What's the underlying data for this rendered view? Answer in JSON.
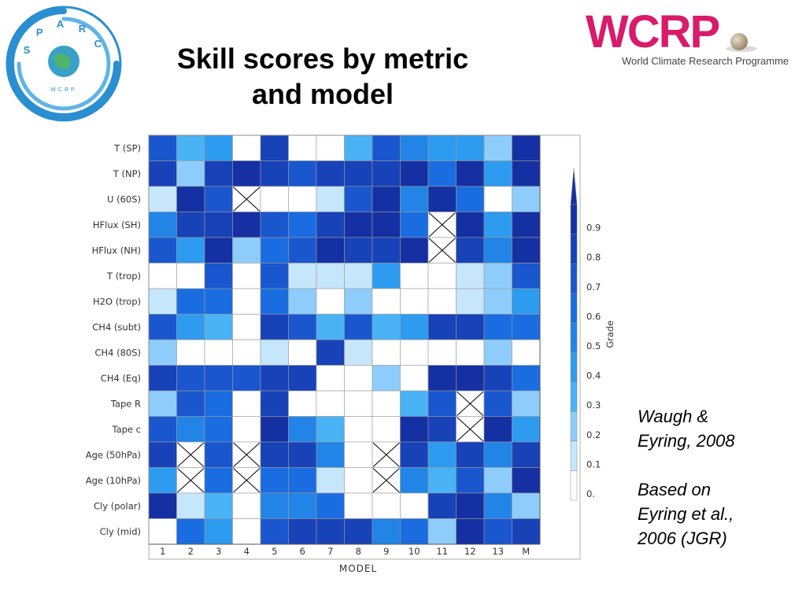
{
  "title": "Skill scores by metric\nand model",
  "logos": {
    "sparc_letters": [
      "S",
      "P",
      "A",
      "R",
      "C"
    ],
    "sparc_inner": "WCRP",
    "wcrp_word": "WCRP",
    "wcrp_subtitle": "World Climate Research Programme"
  },
  "caption": {
    "line1": "Waugh &\nEyring, 2008",
    "line2": "Based on\nEyring et al.,\n2006 (JGR)"
  },
  "colors": {
    "missing_marker": "#000000",
    "colorbar_levels": [
      "#ffffff",
      "#c6e6fb",
      "#8ecdfb",
      "#49b3f6",
      "#2d9bf0",
      "#2184e6",
      "#1a6de0",
      "#1a57cf",
      "#1742b8",
      "#1530a2"
    ]
  },
  "chart_data": {
    "type": "heatmap",
    "xlabel": "MODEL",
    "x_categories": [
      "1",
      "2",
      "3",
      "4",
      "5",
      "6",
      "7",
      "8",
      "9",
      "10",
      "11",
      "12",
      "13",
      "M"
    ],
    "y_categories": [
      "T (SP)",
      "T (NP)",
      "U (60S)",
      "HFlux (SH)",
      "HFlux (NH)",
      "T (trop)",
      "H2O (trop)",
      "CH4 (subt)",
      "CH4 (80S)",
      "CH4 (Eq)",
      "Tape R",
      "Tape c",
      "Age (50hPa)",
      "Age (10hPa)",
      "Cly (polar)",
      "Cly (mid)"
    ],
    "colorbar_label": "Grade",
    "colorbar_ticks": [
      "0.",
      "0.1",
      "0.2",
      "0.3",
      "0.4",
      "0.5",
      "0.6",
      "0.7",
      "0.8",
      "0.9"
    ],
    "value_range": [
      0,
      1
    ],
    "missing_value": null,
    "values": [
      [
        0.75,
        0.3,
        0.45,
        0.0,
        0.85,
        0.0,
        0.0,
        0.35,
        0.75,
        0.55,
        0.45,
        0.45,
        0.25,
        0.95
      ],
      [
        0.85,
        0.25,
        0.85,
        0.95,
        0.85,
        0.75,
        0.85,
        0.85,
        0.85,
        0.9,
        0.65,
        0.9,
        0.45,
        0.95
      ],
      [
        0.15,
        0.95,
        0.75,
        null,
        0.0,
        0.0,
        0.15,
        0.75,
        0.9,
        0.55,
        0.9,
        0.65,
        0.0,
        0.25
      ],
      [
        0.55,
        0.85,
        0.85,
        0.95,
        0.75,
        0.65,
        0.85,
        0.9,
        0.9,
        0.65,
        null,
        0.9,
        0.45,
        0.9
      ],
      [
        0.75,
        0.45,
        0.95,
        0.25,
        0.65,
        0.75,
        0.9,
        0.85,
        0.85,
        0.9,
        null,
        0.85,
        0.55,
        0.9
      ],
      [
        0.0,
        0.0,
        0.75,
        0.0,
        0.75,
        0.15,
        0.15,
        0.15,
        0.45,
        0.0,
        0.0,
        0.15,
        0.25,
        0.75
      ],
      [
        0.15,
        0.65,
        0.65,
        0.0,
        0.65,
        0.25,
        0.0,
        0.25,
        0.0,
        0.0,
        0.0,
        0.15,
        0.25,
        0.45
      ],
      [
        0.75,
        0.45,
        0.35,
        0.0,
        0.85,
        0.75,
        0.35,
        0.75,
        0.35,
        0.45,
        0.85,
        0.85,
        0.65,
        0.65
      ],
      [
        0.25,
        0.0,
        0.0,
        0.0,
        0.15,
        0.0,
        0.85,
        0.15,
        0.0,
        0.0,
        0.0,
        0.0,
        0.25,
        0.0
      ],
      [
        0.85,
        0.75,
        0.75,
        0.75,
        0.85,
        0.85,
        0.0,
        0.0,
        0.25,
        0.0,
        0.95,
        0.95,
        0.85,
        0.65
      ],
      [
        0.25,
        0.75,
        0.65,
        0.0,
        0.85,
        0.0,
        0.0,
        0.0,
        0.0,
        0.35,
        0.75,
        null,
        0.75,
        0.25
      ],
      [
        0.75,
        0.55,
        0.65,
        0.0,
        0.95,
        0.55,
        0.35,
        0.0,
        0.0,
        0.95,
        0.85,
        null,
        0.95,
        0.45
      ],
      [
        0.85,
        null,
        0.75,
        null,
        0.85,
        0.85,
        0.55,
        0.0,
        null,
        0.85,
        0.45,
        0.85,
        0.55,
        0.85
      ],
      [
        0.45,
        null,
        0.65,
        null,
        0.65,
        0.65,
        0.15,
        0.0,
        null,
        0.55,
        0.35,
        0.75,
        0.25,
        0.95
      ],
      [
        0.95,
        0.15,
        0.35,
        0.0,
        0.55,
        0.55,
        0.65,
        0.0,
        0.0,
        0.0,
        0.85,
        0.9,
        0.55,
        0.25
      ],
      [
        0.0,
        0.65,
        0.45,
        0.0,
        0.75,
        0.85,
        0.85,
        0.85,
        0.55,
        0.65,
        0.25,
        0.95,
        0.75,
        0.85
      ]
    ]
  }
}
